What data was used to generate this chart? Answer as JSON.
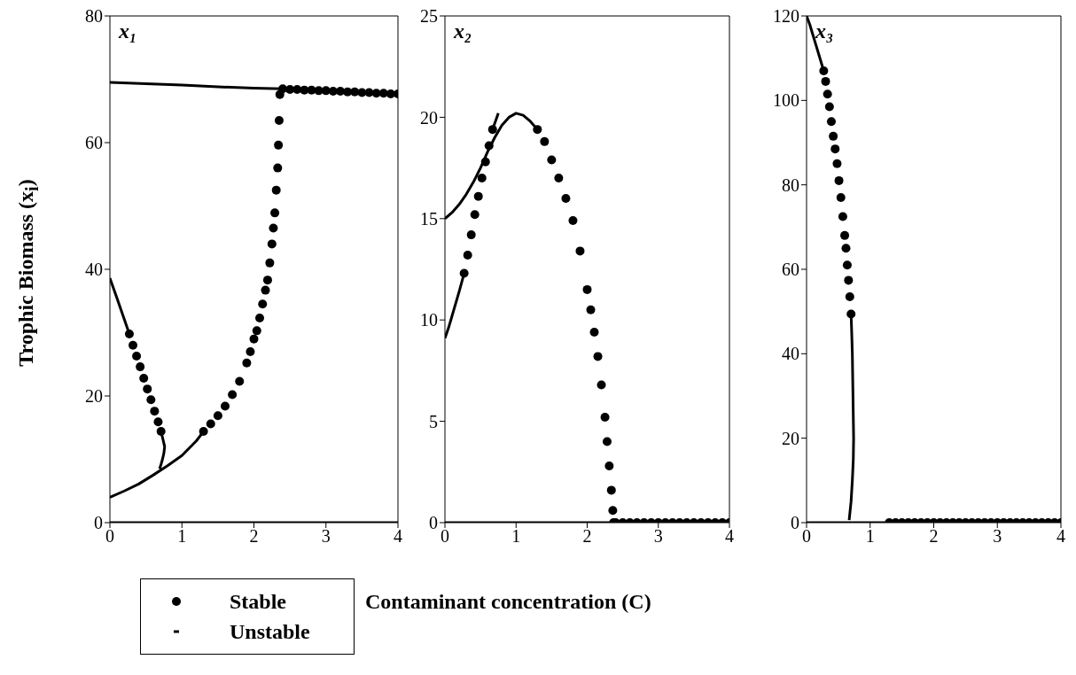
{
  "chart_data": [
    {
      "type": "scatter",
      "title": "x₁",
      "ylabel": "Trophic Biomass (x$_{i}$)",
      "xlim": [
        0,
        4
      ],
      "xticks": [
        0,
        1,
        2,
        3,
        4
      ],
      "ylim": [
        0,
        80
      ],
      "yticks": [
        0,
        20,
        40,
        60,
        80
      ],
      "legend": "bottom left",
      "series": [
        {
          "name": "Stable",
          "marker": "circle",
          "color": "#000000",
          "x": [
            2.4,
            2.5,
            2.6,
            2.7,
            2.8,
            2.9,
            3.0,
            3.1,
            3.2,
            3.3,
            3.4,
            3.5,
            3.6,
            3.7,
            3.8,
            3.9,
            4.0,
            0.27,
            0.32,
            0.37,
            0.42,
            0.47,
            0.52,
            0.57,
            0.62,
            0.67,
            0.71,
            1.3,
            1.4,
            1.5,
            1.6,
            1.7,
            1.8,
            1.9,
            1.95,
            2.0,
            2.04,
            2.08,
            2.12,
            2.16,
            2.19,
            2.22,
            2.25,
            2.27,
            2.29,
            2.31,
            2.33,
            2.34,
            2.35,
            2.36
          ],
          "values": [
            68.5,
            68.4,
            68.4,
            68.3,
            68.3,
            68.2,
            68.2,
            68.1,
            68.1,
            68.0,
            68.0,
            67.9,
            67.9,
            67.8,
            67.8,
            67.7,
            67.7,
            29.8,
            28.0,
            26.3,
            24.6,
            22.8,
            21.1,
            19.4,
            17.6,
            15.9,
            14.4,
            14.4,
            15.6,
            16.9,
            18.4,
            20.2,
            22.3,
            25.2,
            27,
            29,
            30.3,
            32.3,
            34.5,
            36.7,
            38.3,
            41,
            44,
            46.5,
            48.9,
            52.5,
            56,
            59.6,
            63.5,
            67.6
          ]
        },
        {
          "name": "Unstable",
          "type": "line",
          "marker": "none",
          "color": "#000000",
          "x": [
            0,
            0.5,
            1.0,
            1.5,
            2.0,
            2.4,
            null,
            0,
            0.1,
            0.2,
            0.27,
            null,
            0.71,
            0.74,
            0.76,
            0.75,
            0.73,
            0.71,
            0.69,
            null,
            0,
            0.2,
            0.4,
            0.6,
            0.8,
            1.0,
            1.2,
            1.3
          ],
          "values": [
            69.5,
            69.3,
            69.1,
            68.8,
            68.6,
            68.5,
            null,
            38.6,
            35.4,
            32.1,
            29.8,
            null,
            14.4,
            13.0,
            12.0,
            11.0,
            10.0,
            9.2,
            8.5,
            null,
            4.0,
            5.0,
            6.1,
            7.5,
            9.0,
            10.6,
            12.9,
            14.4
          ]
        },
        {
          "type": "line",
          "marker": "none",
          "color": "#000000",
          "x": [
            0,
            4
          ],
          "values": [
            0,
            0
          ]
        }
      ]
    },
    {
      "type": "scatter",
      "title": "x₂",
      "xlabel": "Contaminant concentration (C)",
      "xlim": [
        0,
        4
      ],
      "xticks": [
        0,
        1,
        2,
        3,
        4
      ],
      "ylim": [
        0,
        25
      ],
      "yticks": [
        0,
        5,
        10,
        15,
        20,
        25
      ],
      "legend": false,
      "series": [
        {
          "marker": "circle",
          "color": "#000000",
          "x": [
            1.3,
            1.4,
            1.5,
            1.6,
            1.7,
            1.8,
            1.9,
            2.0,
            2.05,
            2.1,
            2.15,
            2.2,
            2.25,
            2.28,
            2.31,
            2.34,
            2.36,
            2.37,
            0.27,
            0.32,
            0.37,
            0.42,
            0.47,
            0.52,
            0.57,
            0.62,
            0.67,
            2.4,
            2.5,
            2.6,
            2.7,
            2.8,
            2.9,
            3.0,
            3.1,
            3.2,
            3.3,
            3.4,
            3.5,
            3.6,
            3.7,
            3.8,
            3.9,
            4.0
          ],
          "values": [
            19.4,
            18.8,
            17.9,
            17.0,
            16.0,
            14.9,
            13.4,
            11.5,
            10.5,
            9.4,
            8.2,
            6.8,
            5.2,
            4.0,
            2.8,
            1.6,
            0.6,
            0,
            12.3,
            13.2,
            14.2,
            15.2,
            16.1,
            17.0,
            17.8,
            18.6,
            19.4,
            0,
            0,
            0,
            0,
            0,
            0,
            0,
            0,
            0,
            0,
            0,
            0,
            0,
            0,
            0,
            0,
            0
          ]
        },
        {
          "type": "line",
          "marker": "none",
          "color": "#000000",
          "x": [
            0,
            0.1,
            0.2,
            0.3,
            0.4,
            0.5,
            0.6,
            0.7,
            0.8,
            0.9,
            1.0,
            1.1,
            1.2,
            1.3,
            null,
            0,
            0.05,
            0.1,
            0.15,
            0.2,
            0.27,
            null,
            0.67,
            0.7,
            0.73,
            0.75
          ],
          "values": [
            15.0,
            15.3,
            15.7,
            16.2,
            16.8,
            17.5,
            18.3,
            19.0,
            19.6,
            20.0,
            20.2,
            20.1,
            19.8,
            19.4,
            null,
            9.1,
            9.6,
            10.2,
            10.8,
            11.4,
            12.3,
            null,
            19.4,
            19.7,
            20.0,
            20.2
          ]
        },
        {
          "type": "line",
          "marker": "none",
          "color": "#000000",
          "x": [
            0,
            2.37
          ],
          "values": [
            0,
            0
          ]
        }
      ]
    },
    {
      "type": "scatter",
      "title": "x₃",
      "xlim": [
        0,
        4
      ],
      "xticks": [
        0,
        1,
        2,
        3,
        4
      ],
      "ylim": [
        0,
        120
      ],
      "yticks": [
        0,
        20,
        40,
        60,
        80,
        100,
        120
      ],
      "legend": false,
      "series": [
        {
          "marker": "circle",
          "color": "#000000",
          "x": [
            0.27,
            0.3,
            0.33,
            0.36,
            0.39,
            0.42,
            0.45,
            0.48,
            0.51,
            0.54,
            0.57,
            0.6,
            0.62,
            0.64,
            0.66,
            0.68,
            0.7,
            1.3,
            1.4,
            1.5,
            1.6,
            1.7,
            1.8,
            1.9,
            2.0,
            2.1,
            2.2,
            2.3,
            2.4,
            2.5,
            2.6,
            2.7,
            2.8,
            2.9,
            3.0,
            3.1,
            3.2,
            3.3,
            3.4,
            3.5,
            3.6,
            3.7,
            3.8,
            3.9,
            4.0
          ],
          "values": [
            107,
            104.5,
            101.5,
            98.5,
            95,
            91.5,
            88.5,
            85,
            81,
            77,
            72.5,
            68,
            65,
            61,
            57.4,
            53.5,
            49.4,
            0,
            0,
            0,
            0,
            0,
            0,
            0,
            0,
            0,
            0,
            0,
            0,
            0,
            0,
            0,
            0,
            0,
            0,
            0,
            0,
            0,
            0,
            0,
            0,
            0,
            0,
            0,
            0
          ]
        },
        {
          "type": "line",
          "marker": "none",
          "color": "#000000",
          "x": [
            0,
            0.05,
            0.1,
            0.15,
            0.2,
            0.27,
            null,
            0.7,
            0.71,
            0.72,
            0.725,
            0.73,
            0.735,
            0.74,
            0.735,
            0.72,
            0.7,
            0.67
          ],
          "values": [
            120,
            118,
            115.5,
            113,
            110.5,
            107,
            null,
            49.4,
            45,
            40,
            35,
            30,
            25,
            20,
            15,
            10,
            5,
            0.6
          ]
        },
        {
          "type": "line",
          "marker": "none",
          "color": "#000000",
          "x": [
            0,
            1.3
          ],
          "values": [
            0,
            0
          ]
        }
      ]
    }
  ]
}
